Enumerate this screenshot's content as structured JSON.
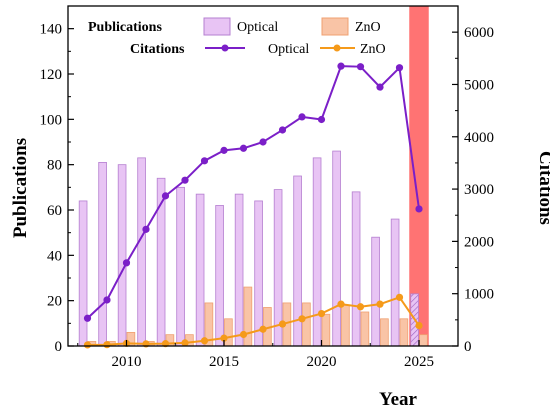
{
  "chart_data": {
    "type": "bar+line",
    "xlabel": "Year",
    "ylabel_left": "Publications",
    "ylabel_right": "Citations",
    "xlim": [
      2007,
      2027
    ],
    "ylim_left": [
      0,
      150
    ],
    "ylim_right": [
      0,
      6500
    ],
    "x_ticks": [
      2010,
      2015,
      2020,
      2025
    ],
    "y_left_ticks": [
      0,
      20,
      40,
      60,
      80,
      100,
      120,
      140
    ],
    "y_right_ticks": [
      0,
      1000,
      2000,
      3000,
      4000,
      5000,
      6000
    ],
    "grid": false,
    "legend_placement": "top",
    "legend": {
      "publications_heading": "Publications",
      "citations_heading": "Citations",
      "optical_label": "Optical",
      "zno_label": "ZnO"
    },
    "highlight": {
      "x_start": 2024.5,
      "x_end": 2025.5,
      "color": "#ff6b6b",
      "note": "partial year 2025 shown hatched"
    },
    "colors": {
      "optical_bar": "#e8c4f4",
      "optical_bar_edge": "#b57fd0",
      "zno_bar": "#f9c4a6",
      "zno_bar_edge": "#f0a070",
      "optical_line": "#7b1fc8",
      "zno_line": "#f59a1a"
    },
    "years": [
      2008,
      2009,
      2010,
      2011,
      2012,
      2013,
      2014,
      2015,
      2016,
      2017,
      2018,
      2019,
      2020,
      2021,
      2022,
      2023,
      2024,
      2025
    ],
    "series": [
      {
        "name": "Optical",
        "kind": "bar",
        "axis": "Publications",
        "values": [
          64,
          81,
          80,
          83,
          74,
          70,
          67,
          62,
          67,
          64,
          69,
          75,
          83,
          86,
          68,
          48,
          56,
          23
        ]
      },
      {
        "name": "ZnO",
        "kind": "bar",
        "axis": "Publications",
        "values": [
          2,
          2,
          6,
          2,
          5,
          5,
          19,
          12,
          26,
          17,
          19,
          19,
          14,
          18,
          15,
          12,
          12,
          5
        ]
      },
      {
        "name": "Optical",
        "kind": "line",
        "axis": "Citations",
        "values": [
          530,
          880,
          1590,
          2230,
          2870,
          3170,
          3540,
          3740,
          3780,
          3900,
          4130,
          4380,
          4330,
          5350,
          5340,
          4950,
          5320,
          2620
        ]
      },
      {
        "name": "ZnO",
        "kind": "line",
        "axis": "Citations",
        "values": [
          20,
          25,
          50,
          40,
          45,
          60,
          100,
          150,
          220,
          320,
          420,
          520,
          620,
          800,
          750,
          800,
          930,
          390
        ]
      }
    ]
  }
}
